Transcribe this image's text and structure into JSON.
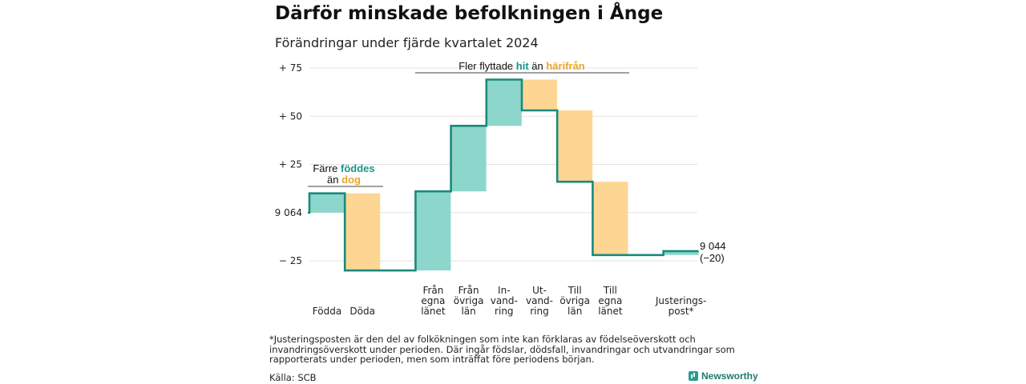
{
  "title": "Därför minskade befolkningen i Ånge",
  "subtitle": "Förändringar under fjärde kvartalet 2024",
  "annotations": {
    "born": {
      "line1": "Färre ",
      "line1_hl": "föddes",
      "line2": "än ",
      "line2_hl": "dog"
    },
    "moved": {
      "part1": "Fler flyttade ",
      "hl1": "hit",
      "part2": " än ",
      "hl2": "härifrån"
    }
  },
  "end_label": {
    "value": "9 044",
    "change": "(−20)"
  },
  "footnote": "*Justeringsposten är den del av folkökningen som inte kan förklaras av födelseöverskott och invandringsöverskott under perioden. Där ingår födslar, dödsfall, invandringar och utvandringar som rapporterats under perioden, men som inträffat före periodens början.",
  "source": "Källa: SCB",
  "brand": {
    "name": "Newsworthy",
    "icon": "bar-chart-icon"
  },
  "colors": {
    "positive": "#8dd6cc",
    "negative": "#fdd693",
    "line": "#1a8a7b",
    "hit": "#18968a",
    "harifran": "#eaa62a"
  },
  "chart_data": {
    "type": "waterfall",
    "start": 9064,
    "end": 9044,
    "change": -20,
    "ylim": [
      -30,
      78
    ],
    "y_ticks": [
      {
        "value": 75,
        "label": "+ 75"
      },
      {
        "value": 50,
        "label": "+ 50"
      },
      {
        "value": 25,
        "label": "+ 25"
      },
      {
        "value": 0,
        "label": "9 064"
      },
      {
        "value": -25,
        "label": "− 25"
      }
    ],
    "steps": [
      {
        "lines": [
          "Födda"
        ],
        "value": 10
      },
      {
        "lines": [
          "Döda"
        ],
        "value": -40
      },
      {
        "lines": [
          "Från",
          "egna",
          "länet"
        ],
        "value": 41
      },
      {
        "lines": [
          "Från",
          "övriga",
          "län"
        ],
        "value": 34
      },
      {
        "lines": [
          "In-",
          "vand-",
          "ring"
        ],
        "value": 24
      },
      {
        "lines": [
          "Ut-",
          "vand-",
          "ring"
        ],
        "value": -16
      },
      {
        "lines": [
          "Till",
          "övriga",
          "län"
        ],
        "value": -37
      },
      {
        "lines": [
          "Till",
          "egna",
          "länet"
        ],
        "value": -38
      },
      {
        "lines": [
          "Justerings-",
          "post*"
        ],
        "value": 2
      }
    ]
  }
}
